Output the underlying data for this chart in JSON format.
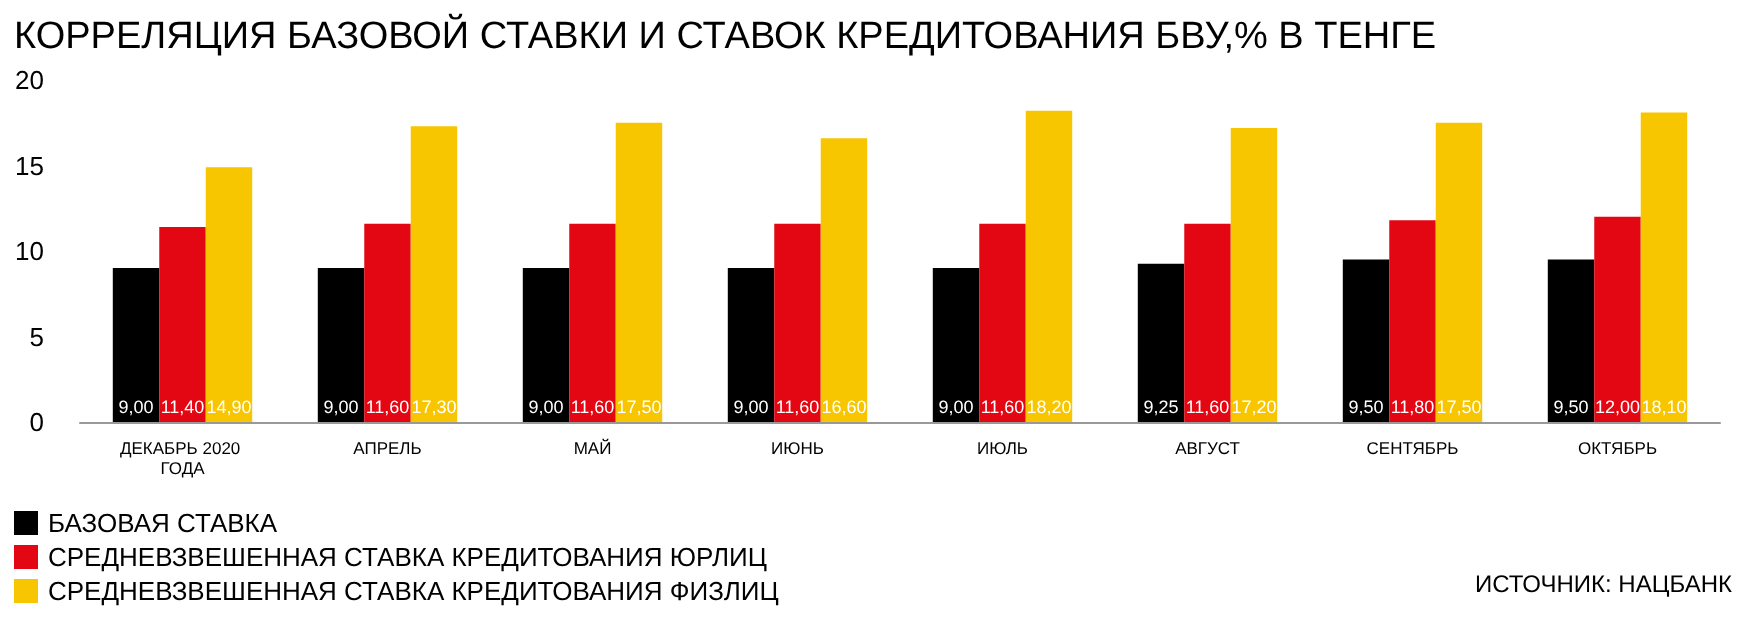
{
  "chart_data": {
    "type": "bar",
    "title": "КОРРЕЛЯЦИЯ БАЗОВОЙ СТАВКИ И СТАВОК КРЕДИТОВАНИЯ БВУ,% В ТЕНГЕ",
    "categories": [
      "ДЕКАБРЬ 2020 ГОДА",
      "АПРЕЛЬ",
      "МАЙ",
      "ИЮНЬ",
      "ИЮЛЬ",
      "АВГУСТ",
      "СЕНТЯБРЬ",
      "ОКТЯБРЬ"
    ],
    "series": [
      {
        "name": "БАЗОВАЯ СТАВКА",
        "color": "#000000",
        "values": [
          9.0,
          9.0,
          9.0,
          9.0,
          9.0,
          9.25,
          9.5,
          9.5
        ],
        "value_labels": [
          "9,00",
          "9,00",
          "9,00",
          "9,00",
          "9,00",
          "9,25",
          "9,50",
          "9,50"
        ]
      },
      {
        "name": "СРЕДНЕВЗВЕШЕННАЯ СТАВКА КРЕДИТОВАНИЯ ЮРЛИЦ",
        "color": "#e30613",
        "values": [
          11.4,
          11.6,
          11.6,
          11.6,
          11.6,
          11.6,
          11.8,
          12.0
        ],
        "value_labels": [
          "11,40",
          "11,60",
          "11,60",
          "11,60",
          "11,60",
          "11,60",
          "11,80",
          "12,00"
        ]
      },
      {
        "name": "СРЕДНЕВЗВЕШЕННАЯ СТАВКА КРЕДИТОВАНИЯ ФИЗЛИЦ",
        "color": "#f7c600",
        "values": [
          14.9,
          17.3,
          17.5,
          16.6,
          18.2,
          17.2,
          17.5,
          18.1
        ],
        "value_labels": [
          "14,90",
          "17,30",
          "17,50",
          "16,60",
          "18,20",
          "17,20",
          "17,50",
          "18,10"
        ]
      }
    ],
    "ylim": [
      0,
      20
    ],
    "yticks": [
      0,
      5,
      10,
      15,
      20
    ],
    "grid": false,
    "legend": "bottom left",
    "annotations": [
      "ИСТОЧНИК: НАЦБАНК"
    ]
  }
}
